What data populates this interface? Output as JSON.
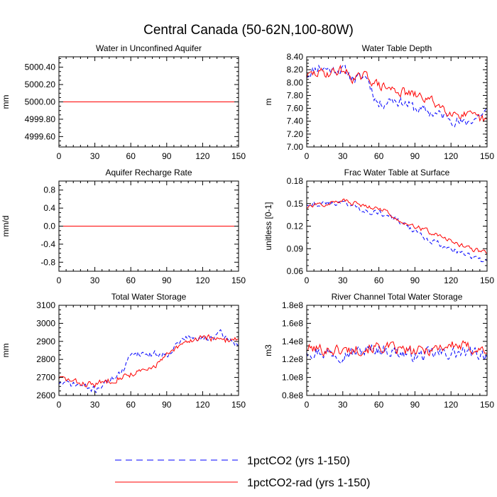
{
  "title": "Central Canada (50-62N,100-80W)",
  "legend": [
    {
      "label": "1pctCO2 (yrs 1-150)",
      "color": "#0000ff",
      "dash": true
    },
    {
      "label": "1pctCO2-rad (yrs 1-150)",
      "color": "#ff0000",
      "dash": false
    }
  ],
  "chart_data": [
    {
      "type": "line",
      "title": "Water in Unconfined Aquifer",
      "ylabel": "mm",
      "xlim": [
        0,
        150
      ],
      "xticks": [
        0,
        30,
        60,
        90,
        120,
        150
      ],
      "ylim": [
        4999.48,
        5000.52
      ],
      "yticks": [
        4999.6,
        4999.8,
        5000.0,
        5000.2,
        5000.4
      ],
      "ytick_labels": [
        "4999.60",
        "4999.80",
        "5000.00",
        "5000.20",
        "5000.40"
      ],
      "series": [
        {
          "name": "1pctCO2 (yrs 1-150)",
          "kind": "flat",
          "value": 5000.0
        },
        {
          "name": "1pctCO2-rad (yrs 1-150)",
          "kind": "flat",
          "value": 5000.0
        }
      ]
    },
    {
      "type": "line",
      "title": "Water Table Depth",
      "ylabel": "m",
      "xlim": [
        0,
        150
      ],
      "xticks": [
        0,
        30,
        60,
        90,
        120,
        150
      ],
      "ylim": [
        7.0,
        8.4
      ],
      "yticks": [
        7.0,
        7.2,
        7.4,
        7.6,
        7.8,
        8.0,
        8.2,
        8.4
      ],
      "ytick_labels": [
        "7.00",
        "7.20",
        "7.40",
        "7.60",
        "7.80",
        "8.00",
        "8.20",
        "8.40"
      ],
      "series": [
        {
          "name": "1pctCO2 (yrs 1-150)",
          "kind": "anchors",
          "noise": 0.13,
          "seed": 11,
          "anchors": [
            [
              0,
              8.12
            ],
            [
              10,
              8.25
            ],
            [
              20,
              8.2
            ],
            [
              30,
              8.2
            ],
            [
              40,
              8.05
            ],
            [
              50,
              8.1
            ],
            [
              55,
              7.85
            ],
            [
              60,
              7.65
            ],
            [
              70,
              7.75
            ],
            [
              80,
              7.7
            ],
            [
              90,
              7.6
            ],
            [
              100,
              7.55
            ],
            [
              110,
              7.5
            ],
            [
              120,
              7.45
            ],
            [
              130,
              7.35
            ],
            [
              140,
              7.45
            ],
            [
              150,
              7.55
            ]
          ]
        },
        {
          "name": "1pctCO2-rad (yrs 1-150)",
          "kind": "anchors",
          "noise": 0.12,
          "seed": 29,
          "anchors": [
            [
              0,
              8.1
            ],
            [
              10,
              8.15
            ],
            [
              20,
              8.15
            ],
            [
              30,
              8.2
            ],
            [
              40,
              8.05
            ],
            [
              50,
              8.1
            ],
            [
              60,
              7.95
            ],
            [
              70,
              7.9
            ],
            [
              80,
              7.85
            ],
            [
              90,
              7.8
            ],
            [
              100,
              7.75
            ],
            [
              110,
              7.65
            ],
            [
              120,
              7.55
            ],
            [
              130,
              7.5
            ],
            [
              140,
              7.45
            ],
            [
              150,
              7.4
            ]
          ]
        }
      ]
    },
    {
      "type": "line",
      "title": "Aquifer Recharge Rate",
      "ylabel": "mm/d",
      "xlim": [
        0,
        150
      ],
      "xticks": [
        0,
        30,
        60,
        90,
        120,
        150
      ],
      "ylim": [
        -1.0,
        1.0
      ],
      "yticks": [
        -0.8,
        -0.4,
        0.0,
        0.4,
        0.8
      ],
      "ytick_labels": [
        "-0.8",
        "-0.4",
        "0.0",
        "0.4",
        "0.8"
      ],
      "series": [
        {
          "name": "1pctCO2 (yrs 1-150)",
          "kind": "flat",
          "value": 0.0
        },
        {
          "name": "1pctCO2-rad (yrs 1-150)",
          "kind": "flat",
          "value": 0.0
        }
      ]
    },
    {
      "type": "line",
      "title": "Frac Water Table at Surface",
      "ylabel": "unitless [0-1]",
      "xlim": [
        0,
        150
      ],
      "xticks": [
        0,
        30,
        60,
        90,
        120,
        150
      ],
      "ylim": [
        0.06,
        0.18
      ],
      "yticks": [
        0.06,
        0.09,
        0.12,
        0.15,
        0.18
      ],
      "ytick_labels": [
        "0.06",
        "0.09",
        "0.12",
        "0.15",
        "0.18"
      ],
      "series": [
        {
          "name": "1pctCO2 (yrs 1-150)",
          "kind": "anchors",
          "noise": 0.006,
          "seed": 43,
          "anchors": [
            [
              0,
              0.15
            ],
            [
              15,
              0.15
            ],
            [
              30,
              0.152
            ],
            [
              45,
              0.143
            ],
            [
              60,
              0.138
            ],
            [
              75,
              0.128
            ],
            [
              90,
              0.112
            ],
            [
              105,
              0.1
            ],
            [
              120,
              0.09
            ],
            [
              135,
              0.08
            ],
            [
              150,
              0.072
            ]
          ]
        },
        {
          "name": "1pctCO2-rad (yrs 1-150)",
          "kind": "anchors",
          "noise": 0.005,
          "seed": 57,
          "anchors": [
            [
              0,
              0.145
            ],
            [
              15,
              0.15
            ],
            [
              30,
              0.154
            ],
            [
              45,
              0.148
            ],
            [
              60,
              0.145
            ],
            [
              75,
              0.13
            ],
            [
              90,
              0.12
            ],
            [
              105,
              0.11
            ],
            [
              120,
              0.1
            ],
            [
              135,
              0.09
            ],
            [
              150,
              0.085
            ]
          ]
        }
      ]
    },
    {
      "type": "line",
      "title": "Total Water Storage",
      "ylabel": "mm",
      "xlim": [
        0,
        150
      ],
      "xticks": [
        0,
        30,
        60,
        90,
        120,
        150
      ],
      "ylim": [
        2600,
        3100
      ],
      "yticks": [
        2600,
        2700,
        2800,
        2900,
        3000,
        3100
      ],
      "ytick_labels": [
        "2600",
        "2700",
        "2800",
        "2900",
        "3000",
        "3100"
      ],
      "series": [
        {
          "name": "1pctCO2 (yrs 1-150)",
          "kind": "anchors",
          "noise": 30,
          "seed": 71,
          "anchors": [
            [
              0,
              2670
            ],
            [
              15,
              2660
            ],
            [
              30,
              2630
            ],
            [
              45,
              2700
            ],
            [
              55,
              2740
            ],
            [
              60,
              2840
            ],
            [
              75,
              2830
            ],
            [
              90,
              2830
            ],
            [
              105,
              2920
            ],
            [
              120,
              2910
            ],
            [
              135,
              2940
            ],
            [
              150,
              2880
            ]
          ]
        },
        {
          "name": "1pctCO2-rad (yrs 1-150)",
          "kind": "anchors",
          "noise": 28,
          "seed": 83,
          "anchors": [
            [
              0,
              2700
            ],
            [
              15,
              2670
            ],
            [
              30,
              2660
            ],
            [
              45,
              2690
            ],
            [
              60,
              2720
            ],
            [
              75,
              2740
            ],
            [
              90,
              2820
            ],
            [
              105,
              2890
            ],
            [
              120,
              2930
            ],
            [
              135,
              2900
            ],
            [
              150,
              2920
            ]
          ]
        }
      ]
    },
    {
      "type": "line",
      "title": "River Channel Total Water Storage",
      "ylabel": "m3",
      "xlim": [
        0,
        150
      ],
      "xticks": [
        0,
        30,
        60,
        90,
        120,
        150
      ],
      "ylim": [
        80000000,
        180000000
      ],
      "yticks": [
        80000000,
        100000000,
        120000000,
        140000000,
        160000000,
        180000000
      ],
      "ytick_labels": [
        "0.8e8",
        "1.0e8",
        "1.2e8",
        "1.4e8",
        "1.6e8",
        "1.8e8"
      ],
      "series": [
        {
          "name": "1pctCO2 (yrs 1-150)",
          "kind": "anchors",
          "noise": 11000000,
          "seed": 97,
          "anchors": [
            [
              0,
              130000000
            ],
            [
              30,
              126000000
            ],
            [
              60,
              132000000
            ],
            [
              90,
              124000000
            ],
            [
              120,
              127000000
            ],
            [
              150,
              126000000
            ]
          ]
        },
        {
          "name": "1pctCO2-rad (yrs 1-150)",
          "kind": "anchors",
          "noise": 10000000,
          "seed": 101,
          "anchors": [
            [
              0,
              132000000
            ],
            [
              30,
              130000000
            ],
            [
              60,
              134000000
            ],
            [
              90,
              128000000
            ],
            [
              120,
              136000000
            ],
            [
              150,
              130000000
            ]
          ]
        }
      ]
    }
  ]
}
